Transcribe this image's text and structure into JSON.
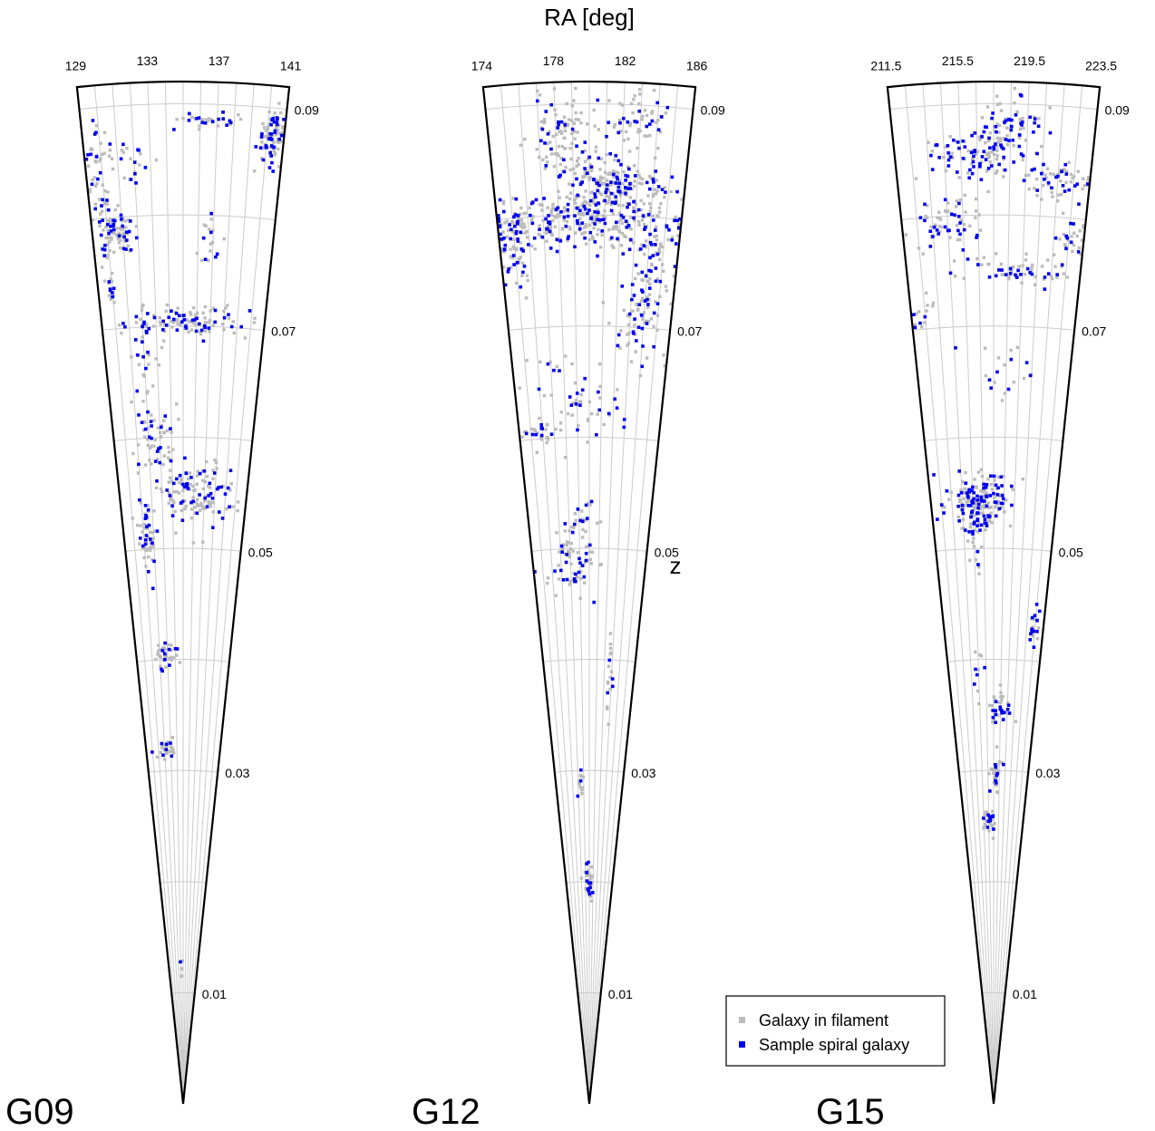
{
  "chart_data": {
    "type": "scatter",
    "projection": "cone (wedge) diagram, radial axis = redshift, angular axis = right ascension",
    "xlabel": "RA [deg]",
    "zlabel": "z",
    "zlim": [
      0,
      0.092
    ],
    "z_ticks": [
      "0.01",
      "0.03",
      "0.05",
      "0.07",
      "0.09"
    ],
    "z_grid": [
      0.01,
      0.02,
      0.03,
      0.04,
      0.05,
      0.06,
      0.07,
      0.08,
      0.09
    ],
    "grid": true,
    "legend_position": "bottom-right",
    "colors": {
      "filament": "#bbbbbb",
      "sample": "#0000ee",
      "outline": "#000000",
      "grid": "#cccccc"
    },
    "legend": [
      {
        "label": "Galaxy in filament",
        "color": "#bbbbbb"
      },
      {
        "label": "Sample spiral galaxy",
        "color": "#0000ee"
      }
    ],
    "panels": [
      {
        "name": "G09",
        "ra_range": [
          129,
          141
        ],
        "ra_tick_values": [
          129,
          133,
          137,
          141
        ],
        "ra_tick_labels": [
          "129",
          "133",
          "137",
          "141"
        ],
        "clusters": [
          {
            "ra": 140.3,
            "z": 0.0875,
            "sd_ra": 0.45,
            "sd_z": 0.0012,
            "n_gray": 60,
            "n_blue": 35
          },
          {
            "ra": 136.8,
            "z": 0.0885,
            "sd_ra": 0.9,
            "sd_z": 0.0004,
            "n_gray": 18,
            "n_blue": 14
          },
          {
            "ra": 131.0,
            "z": 0.0855,
            "sd_ra": 1.2,
            "sd_z": 0.0008,
            "n_gray": 20,
            "n_blue": 14
          },
          {
            "ra": 129.6,
            "z": 0.0825,
            "sd_ra": 0.3,
            "sd_z": 0.0025,
            "n_gray": 25,
            "n_blue": 10
          },
          {
            "ra": 130.6,
            "z": 0.0785,
            "sd_ra": 0.6,
            "sd_z": 0.001,
            "n_gray": 60,
            "n_blue": 30
          },
          {
            "ra": 136.8,
            "z": 0.0775,
            "sd_ra": 0.5,
            "sd_z": 0.0015,
            "n_gray": 12,
            "n_blue": 6
          },
          {
            "ra": 130.0,
            "z": 0.074,
            "sd_ra": 0.3,
            "sd_z": 0.0008,
            "n_gray": 10,
            "n_blue": 6
          },
          {
            "ra": 135.5,
            "z": 0.0705,
            "sd_ra": 2.2,
            "sd_z": 0.0007,
            "n_gray": 70,
            "n_blue": 40
          },
          {
            "ra": 132.1,
            "z": 0.0675,
            "sd_ra": 0.5,
            "sd_z": 0.002,
            "n_gray": 22,
            "n_blue": 10
          },
          {
            "ra": 132.5,
            "z": 0.06,
            "sd_ra": 0.9,
            "sd_z": 0.0018,
            "n_gray": 40,
            "n_blue": 18
          },
          {
            "ra": 136.0,
            "z": 0.055,
            "sd_ra": 2.0,
            "sd_z": 0.0015,
            "n_gray": 90,
            "n_blue": 45
          },
          {
            "ra": 131.5,
            "z": 0.0515,
            "sd_ra": 0.5,
            "sd_z": 0.0015,
            "n_gray": 35,
            "n_blue": 18
          },
          {
            "ra": 133.0,
            "z": 0.0405,
            "sd_ra": 0.8,
            "sd_z": 0.0008,
            "n_gray": 28,
            "n_blue": 10
          },
          {
            "ra": 132.5,
            "z": 0.032,
            "sd_ra": 0.8,
            "sd_z": 0.0005,
            "n_gray": 20,
            "n_blue": 7
          },
          {
            "ra": 134.5,
            "z": 0.012,
            "sd_ra": 0.2,
            "sd_z": 0.0005,
            "n_gray": 4,
            "n_blue": 1
          }
        ]
      },
      {
        "name": "G12",
        "ra_range": [
          174,
          186
        ],
        "ra_tick_values": [
          174,
          178,
          182,
          186
        ],
        "ra_tick_labels": [
          "174",
          "178",
          "182",
          "186"
        ],
        "clusters": [
          {
            "ra": 178.5,
            "z": 0.087,
            "sd_ra": 1.1,
            "sd_z": 0.002,
            "n_gray": 80,
            "n_blue": 20
          },
          {
            "ra": 183.0,
            "z": 0.0885,
            "sd_ra": 0.8,
            "sd_z": 0.0015,
            "n_gray": 40,
            "n_blue": 15
          },
          {
            "ra": 181.5,
            "z": 0.083,
            "sd_ra": 1.5,
            "sd_z": 0.0012,
            "n_gray": 120,
            "n_blue": 60
          },
          {
            "ra": 180.0,
            "z": 0.0795,
            "sd_ra": 3.0,
            "sd_z": 0.0012,
            "n_gray": 200,
            "n_blue": 110
          },
          {
            "ra": 175.0,
            "z": 0.0775,
            "sd_ra": 0.6,
            "sd_z": 0.002,
            "n_gray": 50,
            "n_blue": 30
          },
          {
            "ra": 184.0,
            "z": 0.075,
            "sd_ra": 0.9,
            "sd_z": 0.0025,
            "n_gray": 50,
            "n_blue": 30
          },
          {
            "ra": 183.5,
            "z": 0.07,
            "sd_ra": 1.0,
            "sd_z": 0.002,
            "n_gray": 30,
            "n_blue": 15
          },
          {
            "ra": 178.5,
            "z": 0.063,
            "sd_ra": 1.8,
            "sd_z": 0.002,
            "n_gray": 35,
            "n_blue": 20
          },
          {
            "ra": 176.0,
            "z": 0.0605,
            "sd_ra": 0.8,
            "sd_z": 0.0006,
            "n_gray": 20,
            "n_blue": 8
          },
          {
            "ra": 179.0,
            "z": 0.0525,
            "sd_ra": 1.0,
            "sd_z": 0.001,
            "n_gray": 15,
            "n_blue": 6
          },
          {
            "ra": 178.5,
            "z": 0.0485,
            "sd_ra": 1.5,
            "sd_z": 0.0015,
            "n_gray": 45,
            "n_blue": 25
          },
          {
            "ra": 182.7,
            "z": 0.039,
            "sd_ra": 0.3,
            "sd_z": 0.0025,
            "n_gray": 15,
            "n_blue": 4
          },
          {
            "ra": 178.5,
            "z": 0.0285,
            "sd_ra": 0.3,
            "sd_z": 0.0008,
            "n_gray": 12,
            "n_blue": 3
          },
          {
            "ra": 180.0,
            "z": 0.02,
            "sd_ra": 0.5,
            "sd_z": 0.0008,
            "n_gray": 25,
            "n_blue": 12
          }
        ]
      },
      {
        "name": "G15",
        "ra_range": [
          211.5,
          223.5
        ],
        "ra_tick_values": [
          211.5,
          215.5,
          219.5,
          223.5
        ],
        "ra_tick_labels": [
          "211.5",
          "215.5",
          "219.5",
          "223.5"
        ],
        "clusters": [
          {
            "ra": 216.5,
            "z": 0.0855,
            "sd_ra": 1.5,
            "sd_z": 0.0012,
            "n_gray": 60,
            "n_blue": 60
          },
          {
            "ra": 218.5,
            "z": 0.088,
            "sd_ra": 0.8,
            "sd_z": 0.0015,
            "n_gray": 30,
            "n_blue": 25
          },
          {
            "ra": 221.5,
            "z": 0.0835,
            "sd_ra": 1.4,
            "sd_z": 0.001,
            "n_gray": 40,
            "n_blue": 20
          },
          {
            "ra": 214.5,
            "z": 0.079,
            "sd_ra": 1.2,
            "sd_z": 0.0018,
            "n_gray": 40,
            "n_blue": 25
          },
          {
            "ra": 219.0,
            "z": 0.075,
            "sd_ra": 2.0,
            "sd_z": 0.0008,
            "n_gray": 40,
            "n_blue": 20
          },
          {
            "ra": 222.5,
            "z": 0.078,
            "sd_ra": 0.6,
            "sd_z": 0.0015,
            "n_gray": 20,
            "n_blue": 10
          },
          {
            "ra": 212.5,
            "z": 0.071,
            "sd_ra": 0.5,
            "sd_z": 0.001,
            "n_gray": 10,
            "n_blue": 4
          },
          {
            "ra": 218.5,
            "z": 0.066,
            "sd_ra": 1.2,
            "sd_z": 0.0012,
            "n_gray": 12,
            "n_blue": 8
          },
          {
            "ra": 216.0,
            "z": 0.0545,
            "sd_ra": 1.6,
            "sd_z": 0.0012,
            "n_gray": 110,
            "n_blue": 80
          },
          {
            "ra": 215.5,
            "z": 0.0505,
            "sd_ra": 0.5,
            "sd_z": 0.0015,
            "n_gray": 15,
            "n_blue": 8
          },
          {
            "ra": 222.5,
            "z": 0.043,
            "sd_ra": 0.4,
            "sd_z": 0.0012,
            "n_gray": 10,
            "n_blue": 12
          },
          {
            "ra": 218.5,
            "z": 0.0355,
            "sd_ra": 1.0,
            "sd_z": 0.0008,
            "n_gray": 20,
            "n_blue": 15
          },
          {
            "ra": 218.0,
            "z": 0.0295,
            "sd_ra": 0.5,
            "sd_z": 0.001,
            "n_gray": 25,
            "n_blue": 8
          },
          {
            "ra": 216.5,
            "z": 0.0255,
            "sd_ra": 0.8,
            "sd_z": 0.0007,
            "n_gray": 25,
            "n_blue": 10
          },
          {
            "ra": 215.5,
            "z": 0.0395,
            "sd_ra": 0.3,
            "sd_z": 0.0012,
            "n_gray": 6,
            "n_blue": 4
          }
        ]
      }
    ]
  }
}
